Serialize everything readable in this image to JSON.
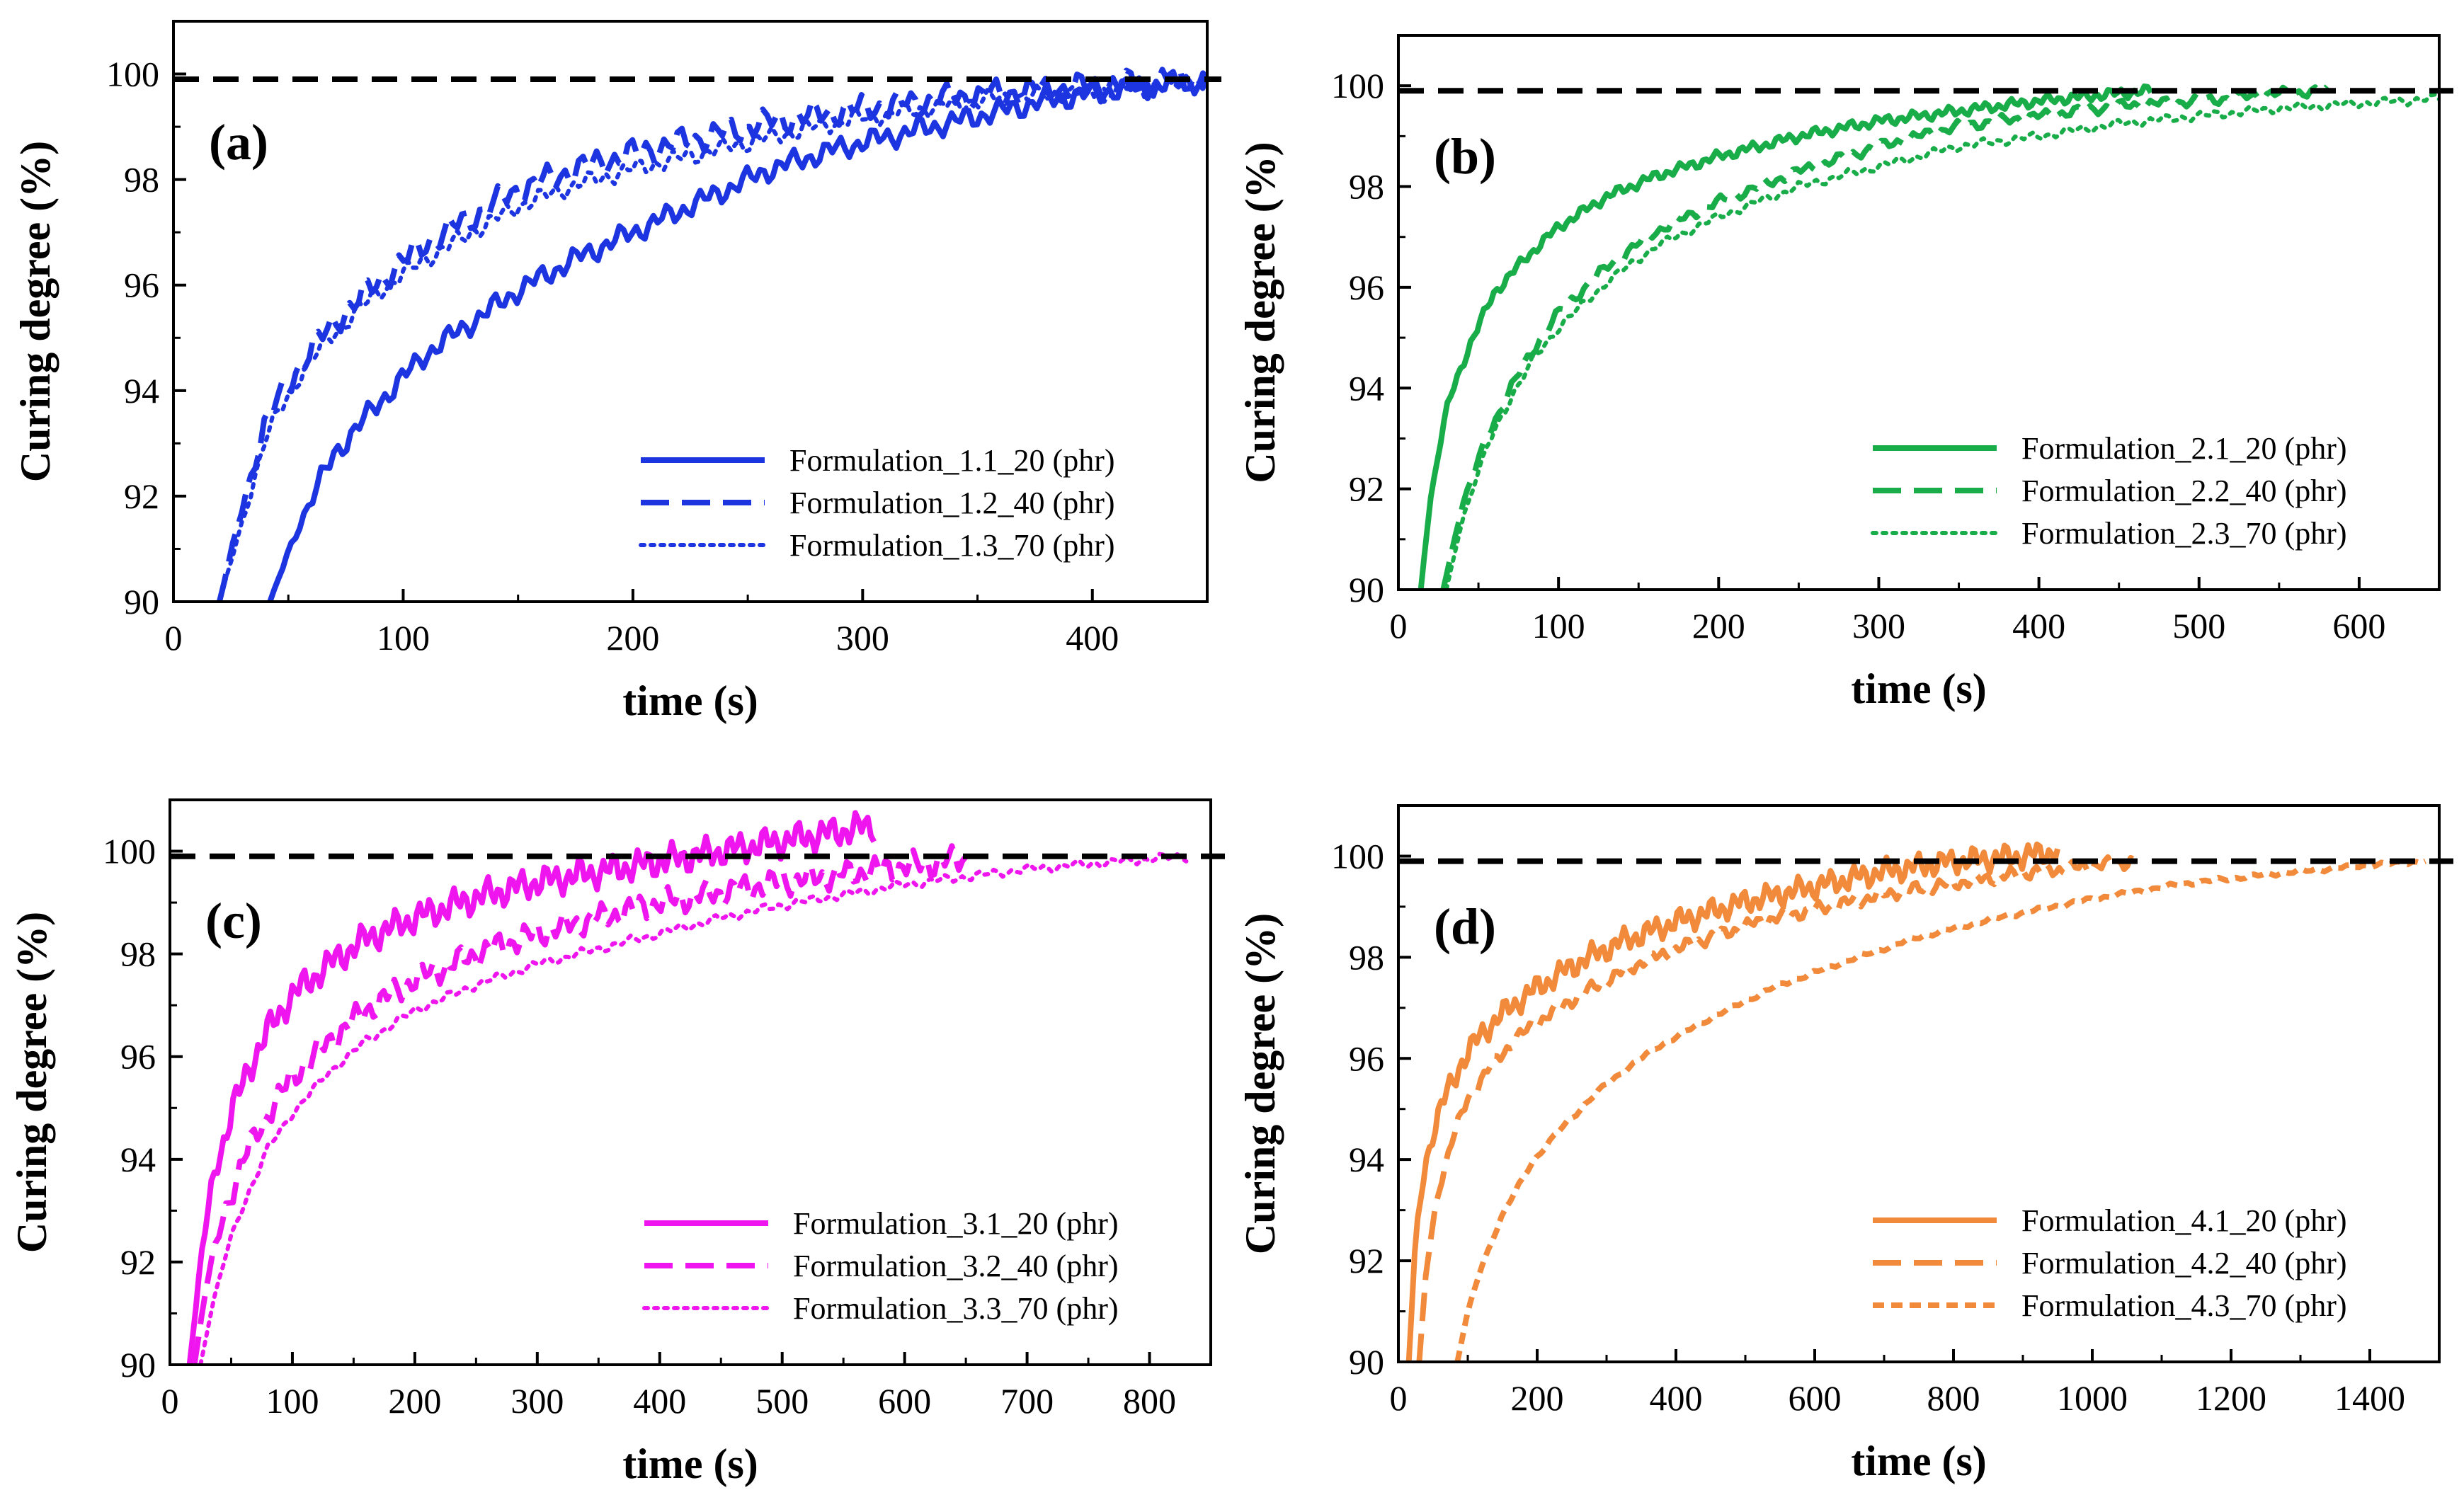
{
  "chart_data": [
    {
      "panel": "(a)",
      "type": "line",
      "xlabel": "time (s)",
      "ylabel": "Curing degree (%)",
      "xlim": [
        0,
        450
      ],
      "ylim": [
        90,
        101
      ],
      "xticks": [
        0,
        100,
        200,
        300,
        400
      ],
      "yticks": [
        90,
        92,
        94,
        96,
        98,
        100
      ],
      "reference_line": {
        "y": 99.9,
        "style": "dashed",
        "color": "#000000"
      },
      "legend_position": "lower-right",
      "color": "#1c35e0",
      "series": [
        {
          "name": "Formulation_1.1_20 (phr)",
          "style": "solid",
          "wiggle": 0.25,
          "x": [
            42,
            55,
            70,
            90,
            110,
            130,
            150,
            175,
            200,
            230,
            260,
            290,
            320,
            350,
            380,
            410,
            440,
            450
          ],
          "y": [
            90.0,
            91.5,
            92.8,
            93.8,
            94.7,
            95.3,
            95.9,
            96.5,
            97.0,
            97.6,
            98.2,
            98.6,
            98.9,
            99.2,
            99.5,
            99.7,
            99.85,
            99.9
          ]
        },
        {
          "name": "Formulation_1.2_40 (phr)",
          "style": "dashed",
          "wiggle": 0.3,
          "x": [
            20,
            30,
            40,
            55,
            70,
            90,
            110,
            130,
            150,
            175,
            200,
            230,
            260,
            290,
            320,
            350,
            380,
            410,
            440,
            450
          ],
          "y": [
            90.0,
            91.8,
            93.4,
            94.5,
            95.3,
            96.1,
            96.8,
            97.3,
            97.8,
            98.2,
            98.5,
            98.8,
            99.1,
            99.3,
            99.45,
            99.6,
            99.7,
            99.8,
            99.9,
            99.95
          ]
        },
        {
          "name": "Formulation_1.3_70 (phr)",
          "style": "dotted",
          "wiggle": 0.2,
          "x": [
            20,
            30,
            40,
            55,
            70,
            90,
            110,
            130,
            150,
            175,
            200,
            230,
            260,
            290,
            320,
            350,
            380,
            410,
            440,
            450
          ],
          "y": [
            90.0,
            91.5,
            93.1,
            94.3,
            95.1,
            95.9,
            96.5,
            97.0,
            97.5,
            97.9,
            98.2,
            98.5,
            98.8,
            99.1,
            99.3,
            99.5,
            99.6,
            99.7,
            99.8,
            99.85
          ]
        }
      ]
    },
    {
      "panel": "(b)",
      "type": "line",
      "xlabel": "time (s)",
      "ylabel": "Curing degree (%)",
      "xlim": [
        0,
        650
      ],
      "ylim": [
        90,
        101
      ],
      "xticks": [
        0,
        100,
        200,
        300,
        400,
        500,
        600
      ],
      "yticks": [
        90,
        92,
        94,
        96,
        98,
        100
      ],
      "reference_line": {
        "y": 99.9,
        "style": "dashed",
        "color": "#000000"
      },
      "legend_position": "lower-right",
      "color": "#19ad4a",
      "series": [
        {
          "name": "Formulation_2.1_20 (phr)",
          "style": "solid",
          "wiggle": 0.12,
          "x": [
            14,
            20,
            30,
            45,
            60,
            80,
            100,
            130,
            160,
            200,
            250,
            300,
            350,
            400,
            450,
            470
          ],
          "y": [
            90.0,
            91.8,
            93.6,
            94.9,
            95.9,
            96.6,
            97.2,
            97.8,
            98.2,
            98.6,
            99.0,
            99.3,
            99.5,
            99.7,
            99.85,
            99.9
          ]
        },
        {
          "name": "Formulation_2.2_40 (phr)",
          "style": "dashed",
          "wiggle": 0.12,
          "x": [
            28,
            40,
            55,
            70,
            85,
            100,
            130,
            160,
            200,
            250,
            300,
            350,
            400,
            450,
            500,
            550,
            580
          ],
          "y": [
            90.0,
            91.7,
            93.0,
            94.0,
            94.8,
            95.5,
            96.4,
            97.1,
            97.7,
            98.3,
            98.8,
            99.2,
            99.4,
            99.6,
            99.7,
            99.85,
            99.9
          ]
        },
        {
          "name": "Formulation_2.3_70 (phr)",
          "style": "dotted",
          "wiggle": 0.1,
          "x": [
            30,
            40,
            55,
            70,
            85,
            100,
            130,
            160,
            200,
            250,
            300,
            350,
            400,
            450,
            500,
            550,
            600,
            650
          ],
          "y": [
            90.0,
            91.4,
            92.8,
            93.8,
            94.6,
            95.2,
            96.1,
            96.8,
            97.4,
            98.0,
            98.4,
            98.8,
            99.0,
            99.25,
            99.4,
            99.55,
            99.65,
            99.75
          ]
        }
      ]
    },
    {
      "panel": "(c)",
      "type": "line",
      "xlabel": "time (s)",
      "ylabel": "Curing degree (%)",
      "xlim": [
        0,
        850
      ],
      "ylim": [
        90,
        101
      ],
      "xticks": [
        0,
        100,
        200,
        300,
        400,
        500,
        600,
        700,
        800
      ],
      "yticks": [
        90,
        92,
        94,
        96,
        98,
        100
      ],
      "reference_line": {
        "y": 99.9,
        "style": "dashed",
        "color": "#000000"
      },
      "legend_position": "lower-right",
      "color": "#ef15ef",
      "series": [
        {
          "name": "Formulation_3.1_20 (phr)",
          "style": "solid",
          "wiggle": 0.35,
          "x": [
            16,
            25,
            35,
            50,
            65,
            80,
            100,
            130,
            160,
            200,
            250,
            300,
            350,
            400,
            450,
            500,
            550,
            575
          ],
          "y": [
            90.0,
            92.0,
            93.6,
            94.9,
            95.8,
            96.5,
            97.2,
            97.8,
            98.3,
            98.7,
            99.1,
            99.4,
            99.6,
            99.8,
            100.0,
            100.2,
            100.4,
            100.5
          ]
        },
        {
          "name": "Formulation_3.2_40 (phr)",
          "style": "dashed",
          "wiggle": 0.3,
          "x": [
            20,
            30,
            45,
            60,
            80,
            100,
            130,
            160,
            200,
            250,
            300,
            350,
            400,
            450,
            500,
            550,
            600,
            650
          ],
          "y": [
            90.0,
            91.6,
            93.0,
            94.0,
            94.9,
            95.6,
            96.3,
            96.9,
            97.5,
            98.0,
            98.4,
            98.7,
            99.0,
            99.2,
            99.4,
            99.55,
            99.7,
            99.85
          ]
        },
        {
          "name": "Formulation_3.3_70 (phr)",
          "style": "dotted",
          "wiggle": 0.1,
          "x": [
            25,
            35,
            50,
            65,
            80,
            100,
            130,
            160,
            200,
            250,
            300,
            350,
            400,
            450,
            500,
            550,
            600,
            650,
            700,
            750,
            800,
            830
          ],
          "y": [
            90.0,
            91.2,
            92.5,
            93.4,
            94.2,
            94.9,
            95.7,
            96.3,
            96.9,
            97.4,
            97.8,
            98.1,
            98.4,
            98.7,
            98.95,
            99.15,
            99.35,
            99.5,
            99.65,
            99.75,
            99.85,
            99.9
          ]
        }
      ]
    },
    {
      "panel": "(d)",
      "type": "line",
      "xlabel": "time (s)",
      "ylabel": "Curing degree (%)",
      "xlim": [
        0,
        1500
      ],
      "ylim": [
        90,
        101
      ],
      "xticks": [
        0,
        200,
        400,
        600,
        800,
        1000,
        1200,
        1400
      ],
      "yticks": [
        90,
        92,
        94,
        96,
        98,
        100
      ],
      "reference_line": {
        "y": 99.9,
        "style": "dashed",
        "color": "#000000"
      },
      "legend_position": "lower-right",
      "color": "#f28a3c",
      "series": [
        {
          "name": "Formulation_4.1_20 (phr)",
          "style": "solid",
          "wiggle": 0.28,
          "x": [
            15,
            25,
            40,
            60,
            90,
            120,
            160,
            200,
            260,
            320,
            400,
            500,
            600,
            700,
            800,
            900,
            950
          ],
          "y": [
            90.0,
            92.5,
            94.0,
            95.0,
            95.9,
            96.5,
            97.0,
            97.4,
            97.9,
            98.3,
            98.7,
            99.1,
            99.4,
            99.7,
            99.9,
            100.0,
            100.1
          ]
        },
        {
          "name": "Formulation_4.2_40 (phr)",
          "style": "dashed",
          "wiggle": 0.15,
          "x": [
            30,
            40,
            55,
            75,
            100,
            130,
            170,
            220,
            280,
            350,
            430,
            520,
            620,
            720,
            820,
            920,
            1000,
            1060
          ],
          "y": [
            90.0,
            91.8,
            93.2,
            94.3,
            95.2,
            95.8,
            96.4,
            96.9,
            97.4,
            97.9,
            98.3,
            98.7,
            99.0,
            99.3,
            99.5,
            99.7,
            99.8,
            99.9
          ]
        },
        {
          "name": "Formulation_4.3_70 (phr)",
          "style": "dashdot-short",
          "wiggle": 0.05,
          "x": [
            85,
            100,
            120,
            150,
            190,
            240,
            300,
            370,
            450,
            540,
            640,
            750,
            870,
            1000,
            1130,
            1260,
            1380,
            1480
          ],
          "y": [
            90.0,
            91.0,
            91.9,
            92.9,
            93.9,
            94.7,
            95.5,
            96.2,
            96.8,
            97.4,
            97.9,
            98.4,
            98.8,
            99.15,
            99.45,
            99.65,
            99.8,
            99.9
          ]
        }
      ]
    }
  ]
}
